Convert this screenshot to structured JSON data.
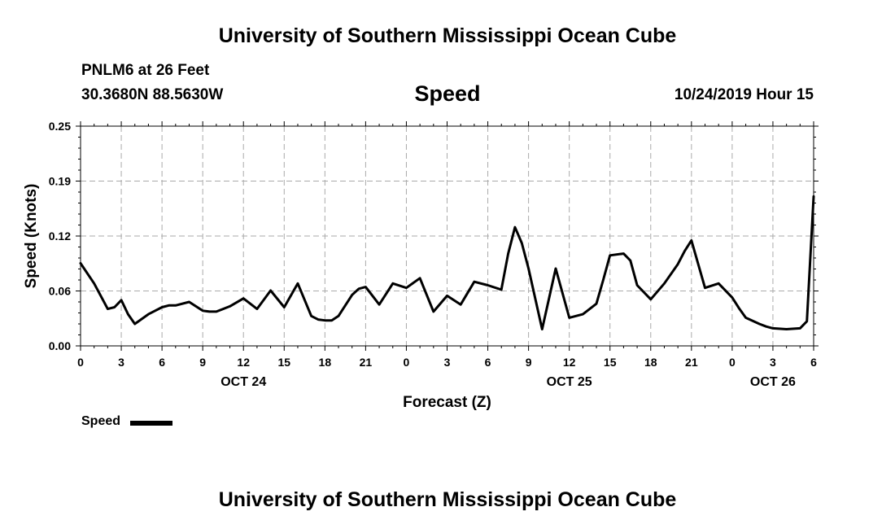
{
  "header": {
    "title": "University of Southern Mississippi Ocean Cube",
    "station": "PNLM6 at 26 Feet",
    "coordinates": "30.3680N 88.5630W",
    "variable": "Speed",
    "datetime": "10/24/2019 Hour 15"
  },
  "footer": {
    "title": "University of Southern Mississippi Ocean Cube"
  },
  "legend": {
    "label": "Speed"
  },
  "chart_data": {
    "type": "line",
    "xlabel": "Forecast (Z)",
    "ylabel": "Speed (Knots)",
    "ylim": [
      0,
      0.25
    ],
    "yticks": [
      "0.00",
      "0.06",
      "0.12",
      "0.19",
      "0.25"
    ],
    "xlim_hours": [
      0,
      54
    ],
    "xticks": [
      "0",
      "3",
      "6",
      "9",
      "12",
      "15",
      "18",
      "21",
      "0",
      "3",
      "6",
      "9",
      "12",
      "15",
      "18",
      "21",
      "0",
      "3",
      "6"
    ],
    "date_labels": [
      {
        "label": "OCT 24",
        "hour": 12
      },
      {
        "label": "OCT 25",
        "hour": 36
      },
      {
        "label": "OCT 26",
        "hour": 51
      }
    ],
    "grid": true,
    "line_color": "#000000",
    "series": [
      {
        "name": "Speed",
        "hours": [
          0,
          1,
          2,
          2.5,
          3,
          3.5,
          4,
          5,
          6,
          6.5,
          7,
          8,
          9,
          9.5,
          10,
          11,
          12,
          13,
          14,
          15,
          16,
          17,
          17.5,
          18,
          18.5,
          19,
          20,
          20.5,
          21,
          22,
          23,
          24,
          25,
          26,
          27,
          28,
          29,
          30,
          31,
          31.5,
          32,
          32.5,
          33,
          34,
          35,
          36,
          37,
          38,
          38.5,
          39,
          40,
          40.5,
          41,
          42,
          43,
          44,
          44.5,
          45,
          46,
          47,
          48,
          48.5,
          49,
          50,
          50.5,
          51,
          52,
          53,
          53.5,
          54
        ],
        "values": [
          0.094,
          0.071,
          0.042,
          0.044,
          0.052,
          0.036,
          0.025,
          0.036,
          0.044,
          0.046,
          0.046,
          0.05,
          0.04,
          0.039,
          0.039,
          0.045,
          0.054,
          0.042,
          0.063,
          0.044,
          0.071,
          0.034,
          0.03,
          0.029,
          0.029,
          0.034,
          0.058,
          0.065,
          0.067,
          0.047,
          0.071,
          0.066,
          0.077,
          0.039,
          0.057,
          0.047,
          0.073,
          0.069,
          0.064,
          0.105,
          0.135,
          0.117,
          0.088,
          0.019,
          0.088,
          0.032,
          0.036,
          0.048,
          0.075,
          0.103,
          0.105,
          0.097,
          0.069,
          0.053,
          0.071,
          0.093,
          0.108,
          0.12,
          0.066,
          0.071,
          0.055,
          0.043,
          0.032,
          0.025,
          0.022,
          0.02,
          0.019,
          0.02,
          0.028,
          0.17
        ]
      }
    ]
  }
}
